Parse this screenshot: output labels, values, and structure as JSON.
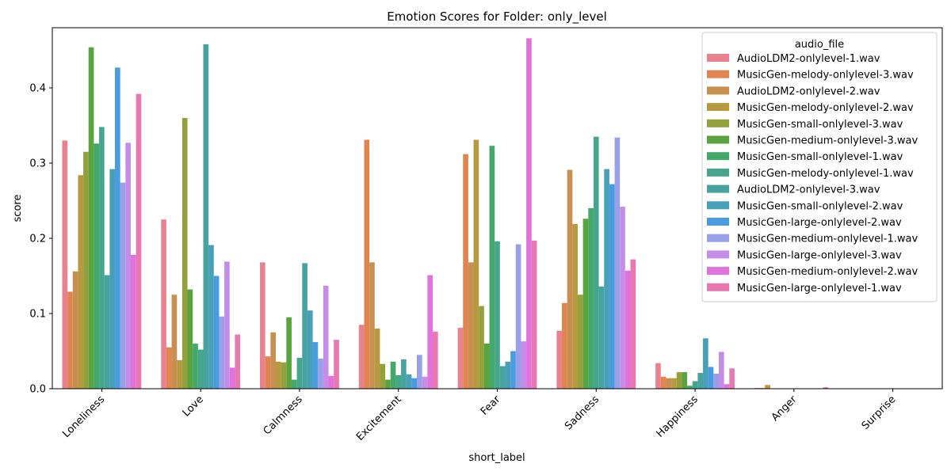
{
  "chart_data": {
    "type": "bar",
    "title": "Emotion Scores for Folder: only_level",
    "xlabel": "short_label",
    "ylabel": "score",
    "ylim": [
      0,
      0.48
    ],
    "yticks": [
      0.0,
      0.1,
      0.2,
      0.3,
      0.4
    ],
    "ytick_labels": [
      "0.0",
      "0.1",
      "0.2",
      "0.3",
      "0.4"
    ],
    "grid": false,
    "legend_title": "audio_file",
    "legend_position": "top-right",
    "categories": [
      "Loneliness",
      "Love",
      "Calmness",
      "Excitement",
      "Fear",
      "Sadness",
      "Happiness",
      "Anger",
      "Surprise"
    ],
    "series": [
      {
        "name": "AudioLDM2-onlylevel-1.wav",
        "color": "#e8828e",
        "values": [
          0.33,
          0.225,
          0.168,
          0.085,
          0.081,
          0.077,
          0.034,
          0.001,
          0.0
        ]
      },
      {
        "name": "MusicGen-melody-onlylevel-3.wav",
        "color": "#e08550",
        "values": [
          0.129,
          0.055,
          0.043,
          0.331,
          0.312,
          0.114,
          0.016,
          0.001,
          0.0
        ]
      },
      {
        "name": "AudioLDM2-onlylevel-2.wav",
        "color": "#c89050",
        "values": [
          0.156,
          0.125,
          0.075,
          0.168,
          0.168,
          0.291,
          0.014,
          0.005,
          0.0
        ]
      },
      {
        "name": "MusicGen-melody-onlylevel-2.wav",
        "color": "#b59a40",
        "values": [
          0.284,
          0.038,
          0.036,
          0.08,
          0.331,
          0.219,
          0.014,
          0.0,
          0.0
        ]
      },
      {
        "name": "MusicGen-small-onlylevel-3.wav",
        "color": "#94a03b",
        "values": [
          0.315,
          0.36,
          0.035,
          0.033,
          0.11,
          0.125,
          0.022,
          0.0,
          0.0
        ]
      },
      {
        "name": "MusicGen-medium-onlylevel-3.wav",
        "color": "#5aa440",
        "values": [
          0.454,
          0.132,
          0.095,
          0.012,
          0.06,
          0.226,
          0.022,
          0.0,
          0.0
        ]
      },
      {
        "name": "MusicGen-small-onlylevel-1.wav",
        "color": "#43a86a",
        "values": [
          0.326,
          0.06,
          0.012,
          0.036,
          0.323,
          0.24,
          0.004,
          0.0,
          0.0
        ]
      },
      {
        "name": "MusicGen-melody-onlylevel-1.wav",
        "color": "#45a68c",
        "values": [
          0.348,
          0.052,
          0.041,
          0.018,
          0.196,
          0.335,
          0.01,
          0.0,
          0.0
        ]
      },
      {
        "name": "AudioLDM2-onlylevel-3.wav",
        "color": "#47a2a0",
        "values": [
          0.151,
          0.458,
          0.167,
          0.039,
          0.03,
          0.136,
          0.021,
          0.0,
          0.0
        ]
      },
      {
        "name": "MusicGen-small-onlylevel-2.wav",
        "color": "#48a0b8",
        "values": [
          0.292,
          0.191,
          0.104,
          0.019,
          0.036,
          0.292,
          0.067,
          0.0,
          0.0
        ]
      },
      {
        "name": "MusicGen-large-onlylevel-2.wav",
        "color": "#4a9ce0",
        "values": [
          0.427,
          0.15,
          0.062,
          0.014,
          0.05,
          0.272,
          0.029,
          0.0,
          0.0
        ]
      },
      {
        "name": "MusicGen-medium-onlylevel-1.wav",
        "color": "#9aa0e8",
        "values": [
          0.274,
          0.096,
          0.04,
          0.045,
          0.192,
          0.334,
          0.02,
          0.0,
          0.0
        ]
      },
      {
        "name": "MusicGen-large-onlylevel-3.wav",
        "color": "#c48ee8",
        "values": [
          0.327,
          0.169,
          0.137,
          0.016,
          0.063,
          0.242,
          0.049,
          0.0,
          0.0
        ]
      },
      {
        "name": "MusicGen-medium-onlylevel-2.wav",
        "color": "#e172dc",
        "values": [
          0.178,
          0.028,
          0.017,
          0.151,
          0.466,
          0.157,
          0.006,
          0.002,
          0.0
        ]
      },
      {
        "name": "MusicGen-large-onlylevel-1.wav",
        "color": "#e878b0",
        "values": [
          0.392,
          0.072,
          0.065,
          0.076,
          0.197,
          0.172,
          0.027,
          0.0,
          0.0
        ]
      }
    ]
  }
}
